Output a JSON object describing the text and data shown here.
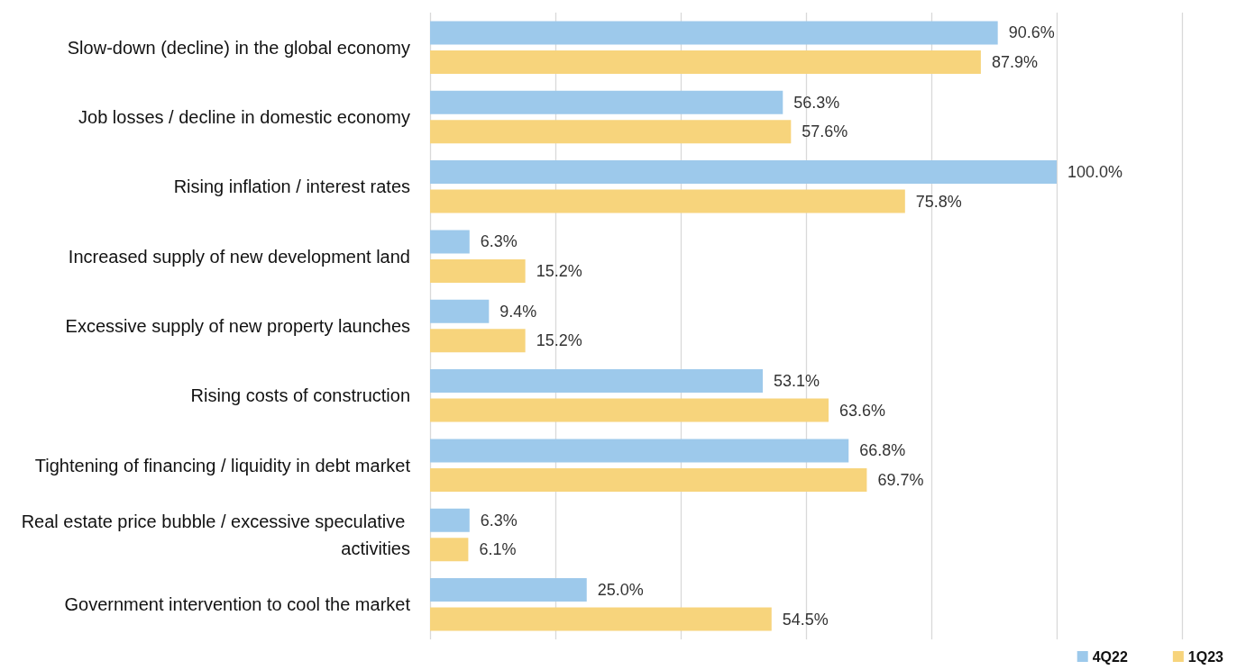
{
  "chart_data": {
    "type": "bar",
    "orientation": "horizontal",
    "categories": [
      "Slow-down (decline) in the global economy",
      "Job losses / decline in domestic economy",
      "Rising inflation / interest rates",
      "Increased supply of new development land",
      "Excessive supply of new property launches",
      "Rising costs of construction",
      "Tightening of financing / liquidity in debt market",
      "Real estate price bubble / excessive speculative activities",
      "Government intervention to cool the market"
    ],
    "series": [
      {
        "name": "4Q22",
        "color": "#9dc9eb",
        "values": [
          90.6,
          56.3,
          100.0,
          6.3,
          9.4,
          53.1,
          66.8,
          6.3,
          25.0
        ],
        "value_labels": [
          "90.6%",
          "56.3%",
          "100.0%",
          "6.3%",
          "9.4%",
          "53.1%",
          "66.8%",
          "6.3%",
          "25.0%"
        ]
      },
      {
        "name": "1Q23",
        "color": "#f7d47c",
        "values": [
          87.9,
          57.6,
          75.8,
          15.2,
          15.2,
          63.6,
          69.7,
          6.1,
          54.5
        ],
        "value_labels": [
          "87.9%",
          "57.6%",
          "75.8%",
          "15.2%",
          "15.2%",
          "63.6%",
          "69.7%",
          "6.1%",
          "54.5%"
        ]
      }
    ],
    "xlim": [
      0,
      120
    ],
    "xticks": [
      {
        "value": 0,
        "label": null
      },
      {
        "value": 20,
        "label": null
      },
      {
        "value": 40,
        "label": null
      },
      {
        "value": 60,
        "label": null
      },
      {
        "value": 80,
        "label": null
      },
      {
        "value": 100,
        "label": null
      },
      {
        "value": 120,
        "label": null
      }
    ],
    "grid": "x",
    "legend": "bottom right",
    "tick_labels": "y"
  }
}
